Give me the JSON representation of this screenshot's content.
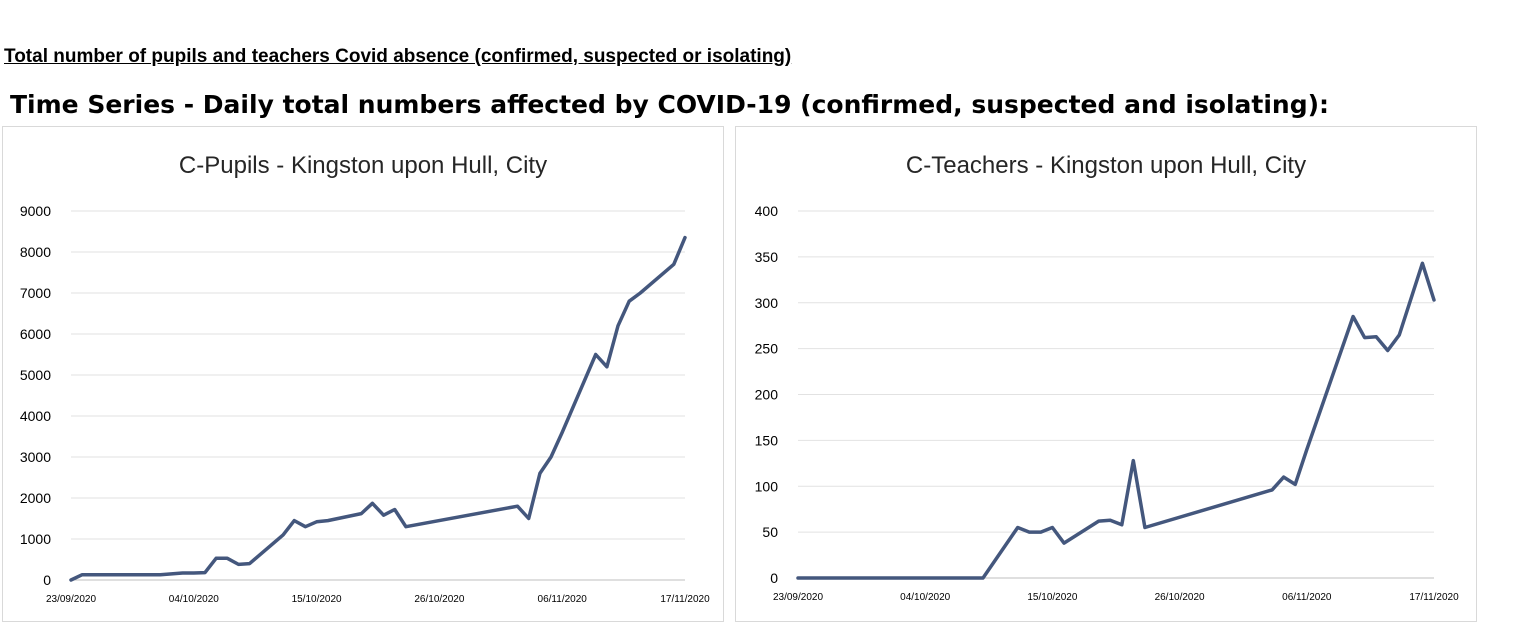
{
  "page": {
    "heading": "Total number of pupils and teachers Covid absence (confirmed, suspected or isolating)",
    "subheading": "Time Series -  Daily total numbers affected by COVID-19 (confirmed, suspected and isolating):"
  },
  "chart_data": [
    {
      "type": "line",
      "title": "C-Pupils - Kingston upon Hull, City",
      "xlabel": "",
      "ylabel": "",
      "ylim": [
        0,
        9000
      ],
      "yticks": [
        0,
        1000,
        2000,
        3000,
        4000,
        5000,
        6000,
        7000,
        8000,
        9000
      ],
      "xlim": [
        "2020-09-23",
        "2020-11-17"
      ],
      "xticks": [
        "23/09/2020",
        "04/10/2020",
        "15/10/2020",
        "26/10/2020",
        "06/11/2020",
        "17/11/2020"
      ],
      "grid": true,
      "legend": "none",
      "color": "#44577d",
      "series": [
        {
          "x": [
            "2020-09-23",
            "2020-09-24",
            "2020-10-01",
            "2020-10-02",
            "2020-10-03",
            "2020-10-04",
            "2020-10-05",
            "2020-10-06",
            "2020-10-07",
            "2020-10-08",
            "2020-10-09",
            "2020-10-12",
            "2020-10-13",
            "2020-10-14",
            "2020-10-15",
            "2020-10-16",
            "2020-10-19",
            "2020-10-20",
            "2020-10-21",
            "2020-10-22",
            "2020-10-23",
            "2020-11-02",
            "2020-11-03",
            "2020-11-04",
            "2020-11-05",
            "2020-11-06",
            "2020-11-09",
            "2020-11-10",
            "2020-11-11",
            "2020-11-12",
            "2020-11-13",
            "2020-11-16",
            "2020-11-17"
          ],
          "values": [
            0,
            130,
            130,
            150,
            170,
            170,
            180,
            530,
            530,
            380,
            400,
            1100,
            1450,
            1300,
            1420,
            1450,
            1620,
            1870,
            1580,
            1720,
            1300,
            1800,
            1500,
            2600,
            3000,
            3600,
            5500,
            5200,
            6200,
            6800,
            7000,
            7700,
            8350
          ]
        }
      ]
    },
    {
      "type": "line",
      "title": "C-Teachers - Kingston upon Hull, City",
      "xlabel": "",
      "ylabel": "",
      "ylim": [
        0,
        400
      ],
      "yticks": [
        0,
        50,
        100,
        150,
        200,
        250,
        300,
        350,
        400
      ],
      "xlim": [
        "2020-09-23",
        "2020-11-17"
      ],
      "xticks": [
        "23/09/2020",
        "04/10/2020",
        "15/10/2020",
        "26/10/2020",
        "06/11/2020",
        "17/11/2020"
      ],
      "grid": true,
      "legend": "none",
      "color": "#44577d",
      "series": [
        {
          "x": [
            "2020-09-23",
            "2020-10-09",
            "2020-10-12",
            "2020-10-13",
            "2020-10-14",
            "2020-10-15",
            "2020-10-16",
            "2020-10-19",
            "2020-10-20",
            "2020-10-21",
            "2020-10-22",
            "2020-10-23",
            "2020-11-03",
            "2020-11-04",
            "2020-11-05",
            "2020-11-06",
            "2020-11-10",
            "2020-11-11",
            "2020-11-12",
            "2020-11-13",
            "2020-11-14",
            "2020-11-16",
            "2020-11-17"
          ],
          "values": [
            0,
            0,
            55,
            50,
            50,
            55,
            38,
            62,
            63,
            58,
            128,
            55,
            96,
            110,
            102,
            140,
            285,
            262,
            263,
            248,
            265,
            343,
            303
          ]
        }
      ]
    }
  ]
}
